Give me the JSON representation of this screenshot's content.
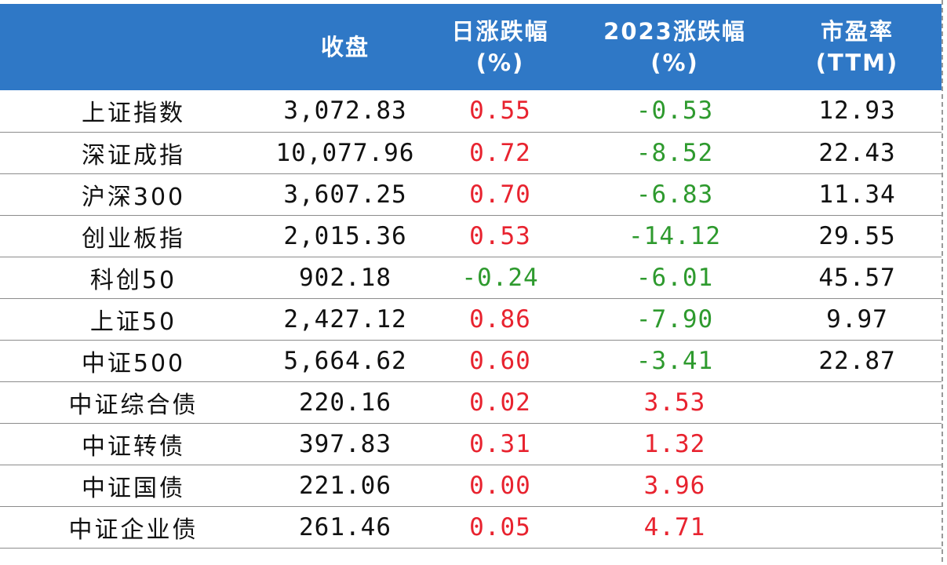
{
  "header": {
    "close": "收盘",
    "daily_change": [
      "日涨跌幅",
      "(%)"
    ],
    "ytd_change": [
      "2023涨跌幅",
      "(%)"
    ],
    "pe": [
      "市盈率",
      "(TTM)"
    ]
  },
  "colors": {
    "header_bg": "#2f78c6",
    "up": "#e8232f",
    "down": "#2e9a2e"
  },
  "rows": [
    {
      "name": "上证指数",
      "close": "3,072.83",
      "daily": "0.55",
      "ytd": "-0.53",
      "pe": "12.93"
    },
    {
      "name": "深证成指",
      "close": "10,077.96",
      "daily": "0.72",
      "ytd": "-8.52",
      "pe": "22.43"
    },
    {
      "name": "沪深300",
      "close": "3,607.25",
      "daily": "0.70",
      "ytd": "-6.83",
      "pe": "11.34"
    },
    {
      "name": "创业板指",
      "close": "2,015.36",
      "daily": "0.53",
      "ytd": "-14.12",
      "pe": "29.55"
    },
    {
      "name": "科创50",
      "close": "902.18",
      "daily": "-0.24",
      "ytd": "-6.01",
      "pe": "45.57"
    },
    {
      "name": "上证50",
      "close": "2,427.12",
      "daily": "0.86",
      "ytd": "-7.90",
      "pe": "9.97"
    },
    {
      "name": "中证500",
      "close": "5,664.62",
      "daily": "0.60",
      "ytd": "-3.41",
      "pe": "22.87"
    },
    {
      "name": "中证综合债",
      "close": "220.16",
      "daily": "0.02",
      "ytd": "3.53",
      "pe": ""
    },
    {
      "name": "中证转债",
      "close": "397.83",
      "daily": "0.31",
      "ytd": "1.32",
      "pe": ""
    },
    {
      "name": "中证国债",
      "close": "221.06",
      "daily": "0.00",
      "ytd": "3.96",
      "pe": ""
    },
    {
      "name": "中证企业债",
      "close": "261.46",
      "daily": "0.05",
      "ytd": "4.71",
      "pe": ""
    }
  ]
}
